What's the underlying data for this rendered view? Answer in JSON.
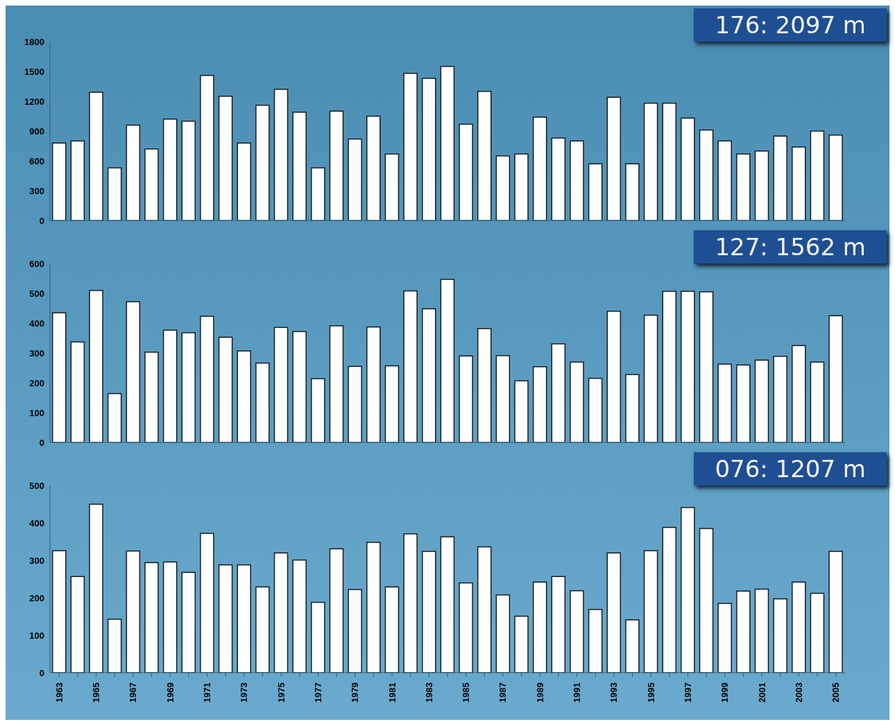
{
  "chart_data": [
    {
      "type": "bar",
      "categories": [
        "1963",
        null,
        "1965",
        null,
        "1967",
        null,
        "1969",
        null,
        "1971",
        null,
        "1973",
        null,
        "1975",
        null,
        "1977",
        null,
        "1979",
        null,
        "1981",
        null,
        "1983",
        null,
        "1985",
        null,
        "1987",
        null,
        "1989",
        null,
        "1991",
        null,
        "1993",
        null,
        "1995",
        null,
        "1997",
        null,
        "1999",
        null,
        "2001",
        null,
        "2003",
        null,
        "2005"
      ],
      "values": [
        780,
        800,
        1290,
        530,
        960,
        720,
        1020,
        1000,
        1460,
        1250,
        780,
        1160,
        1320,
        1090,
        530,
        1100,
        820,
        1050,
        670,
        1480,
        1430,
        1550,
        970,
        1300,
        650,
        670,
        1040,
        830,
        800,
        570,
        1240,
        570,
        1180,
        1180,
        1030,
        910,
        800,
        670,
        700,
        850,
        740,
        900,
        860
      ],
      "color": "#ffffff",
      "ylim": [
        0,
        1800
      ],
      "yticks": [
        0,
        300,
        600,
        900,
        1200,
        1500,
        1800
      ],
      "tick_labels": "y",
      "annotations": [
        "176:  2097 m"
      ]
    },
    {
      "type": "bar",
      "categories": [
        "1963",
        null,
        "1965",
        null,
        "1967",
        null,
        "1969",
        null,
        "1971",
        null,
        "1973",
        null,
        "1975",
        null,
        "1977",
        null,
        "1979",
        null,
        "1981",
        null,
        "1983",
        null,
        "1985",
        null,
        "1987",
        null,
        "1989",
        null,
        "1991",
        null,
        "1993",
        null,
        "1995",
        null,
        "1997",
        null,
        "1999",
        null,
        "2001",
        null,
        "2003",
        null,
        "2005"
      ],
      "values": [
        435,
        337,
        510,
        164,
        472,
        303,
        377,
        368,
        423,
        353,
        307,
        266,
        386,
        372,
        214,
        391,
        255,
        387,
        257,
        508,
        448,
        547,
        290,
        382,
        291,
        207,
        254,
        331,
        270,
        215,
        440,
        228,
        427,
        507,
        507,
        505,
        263,
        260,
        276,
        289,
        325,
        270,
        425
      ],
      "color": "#ffffff",
      "ylim": [
        0,
        600
      ],
      "yticks": [
        0,
        100,
        200,
        300,
        400,
        500,
        600
      ],
      "tick_labels": "y",
      "annotations": [
        "127:  1562 m"
      ]
    },
    {
      "type": "bar",
      "categories": [
        "1963",
        null,
        "1965",
        null,
        "1967",
        null,
        "1969",
        null,
        "1971",
        null,
        "1973",
        null,
        "1975",
        null,
        "1977",
        null,
        "1979",
        null,
        "1981",
        null,
        "1983",
        null,
        "1985",
        null,
        "1987",
        null,
        "1989",
        null,
        "1991",
        null,
        "1993",
        null,
        "1995",
        null,
        "1997",
        null,
        "1999",
        null,
        "2001",
        null,
        "2003",
        null,
        "2005"
      ],
      "values": [
        326,
        257,
        450,
        143,
        325,
        294,
        296,
        268,
        372,
        288,
        288,
        229,
        320,
        301,
        188,
        331,
        222,
        348,
        229,
        371,
        324,
        363,
        240,
        336,
        208,
        151,
        242,
        257,
        219,
        169,
        320,
        141,
        326,
        388,
        441,
        385,
        185,
        218,
        223,
        197,
        242,
        212,
        324
      ],
      "color": "#ffffff",
      "ylim": [
        0,
        500
      ],
      "yticks": [
        0,
        100,
        200,
        300,
        400,
        500
      ],
      "annotations": [
        "076:  1207 m"
      ]
    }
  ]
}
